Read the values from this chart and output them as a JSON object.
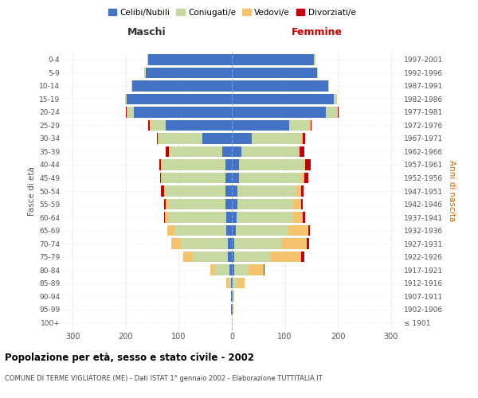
{
  "age_groups": [
    "100+",
    "95-99",
    "90-94",
    "85-89",
    "80-84",
    "75-79",
    "70-74",
    "65-69",
    "60-64",
    "55-59",
    "50-54",
    "45-49",
    "40-44",
    "35-39",
    "30-34",
    "25-29",
    "20-24",
    "15-19",
    "10-14",
    "5-9",
    "0-4"
  ],
  "birth_years": [
    "≤ 1901",
    "1902-1906",
    "1907-1911",
    "1912-1916",
    "1917-1921",
    "1922-1926",
    "1927-1931",
    "1932-1936",
    "1937-1941",
    "1942-1946",
    "1947-1951",
    "1952-1956",
    "1957-1961",
    "1962-1966",
    "1967-1971",
    "1972-1976",
    "1977-1981",
    "1982-1986",
    "1987-1991",
    "1992-1996",
    "1997-2001"
  ],
  "maschi": {
    "celibi": [
      0,
      1,
      1,
      2,
      4,
      8,
      8,
      10,
      10,
      12,
      12,
      12,
      12,
      18,
      55,
      125,
      185,
      198,
      188,
      163,
      158
    ],
    "coniugati": [
      0,
      0,
      1,
      4,
      28,
      65,
      88,
      98,
      108,
      108,
      112,
      118,
      118,
      98,
      82,
      28,
      13,
      4,
      2,
      2,
      2
    ],
    "vedovi": [
      0,
      0,
      0,
      4,
      8,
      18,
      18,
      14,
      8,
      5,
      3,
      3,
      4,
      2,
      2,
      2,
      0,
      0,
      0,
      0,
      0
    ],
    "divorziati": [
      0,
      0,
      0,
      0,
      0,
      0,
      0,
      0,
      2,
      3,
      7,
      2,
      2,
      7,
      2,
      2,
      2,
      0,
      0,
      0,
      0
    ]
  },
  "femmine": {
    "nubili": [
      0,
      1,
      1,
      2,
      4,
      5,
      5,
      8,
      9,
      10,
      10,
      13,
      13,
      18,
      38,
      108,
      178,
      192,
      182,
      160,
      155
    ],
    "coniugate": [
      0,
      1,
      2,
      8,
      28,
      68,
      88,
      98,
      106,
      106,
      112,
      118,
      122,
      108,
      93,
      38,
      22,
      7,
      2,
      2,
      2
    ],
    "vedove": [
      0,
      1,
      2,
      14,
      28,
      58,
      48,
      38,
      18,
      14,
      8,
      5,
      3,
      2,
      2,
      2,
      0,
      0,
      0,
      0,
      0
    ],
    "divorziate": [
      0,
      0,
      0,
      0,
      2,
      5,
      5,
      3,
      5,
      3,
      5,
      8,
      10,
      8,
      5,
      2,
      2,
      0,
      0,
      0,
      0
    ]
  },
  "colors": {
    "celibi": "#4472C4",
    "coniugati": "#C5D9A0",
    "vedovi": "#F5C36E",
    "divorziati": "#C0000C"
  },
  "xlim": 320,
  "title": "Popolazione per età, sesso e stato civile - 2002",
  "subtitle": "COMUNE DI TERME VIGLIATORE (ME) - Dati ISTAT 1° gennaio 2002 - Elaborazione TUTTITALIA.IT",
  "ylabel_left": "Fasce di età",
  "ylabel_right": "Anni di nascita",
  "xlabel_left": "Maschi",
  "xlabel_right": "Femmine",
  "legend_labels": [
    "Celibi/Nubili",
    "Coniugati/e",
    "Vedovi/e",
    "Divorziati/e"
  ],
  "bg_color": "#FFFFFF",
  "grid_color": "#CCCCCC"
}
